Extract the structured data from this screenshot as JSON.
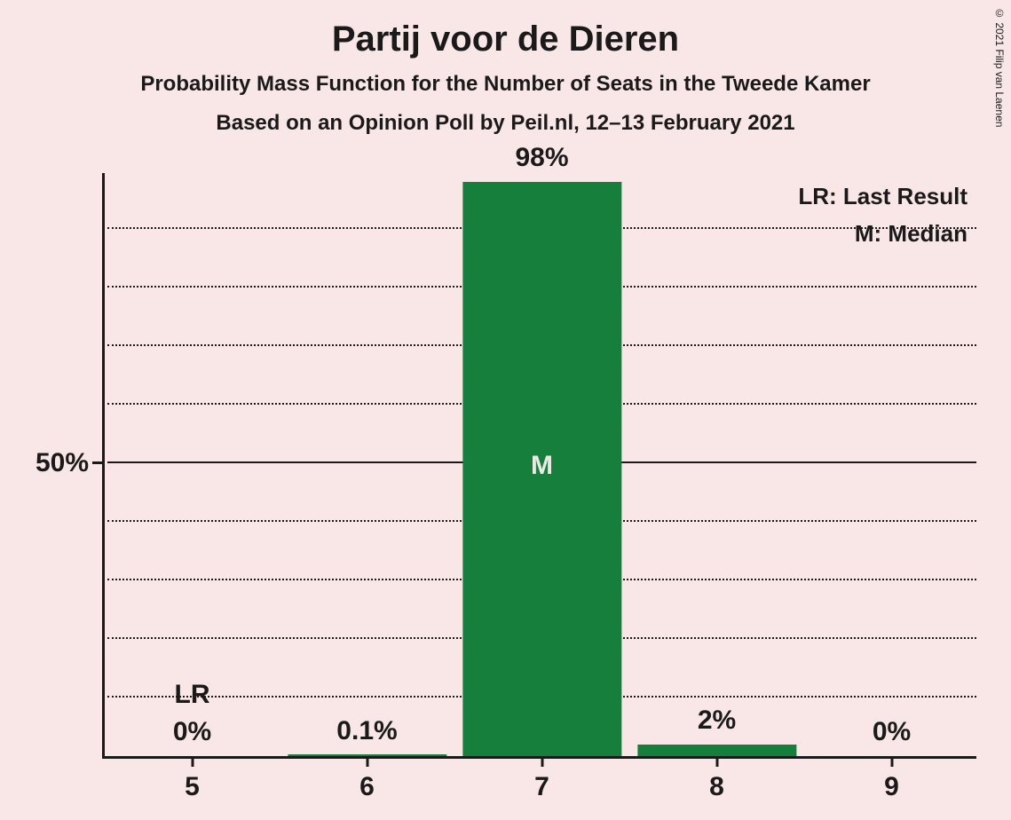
{
  "title": "Partij voor de Dieren",
  "subtitle": "Probability Mass Function for the Number of Seats in the Tweede Kamer",
  "subtitle2": "Based on an Opinion Poll by Peil.nl, 12–13 February 2021",
  "copyright": "© 2021 Filip van Laenen",
  "chart": {
    "type": "bar",
    "background_color": "#f9e7e7",
    "bar_color": "#157f3b",
    "axis_color": "#1a1a1a",
    "grid_color": "#1a1a1a",
    "text_color": "#1a1a1a",
    "inside_text_color": "#f0e6e6",
    "ylim_max_pct": 100,
    "y_major_tick": 50,
    "y_major_label": "50%",
    "y_minor_step": 10,
    "bar_width_ratio": 0.91,
    "categories": [
      "5",
      "6",
      "7",
      "8",
      "9"
    ],
    "values_pct": [
      0,
      0.1,
      98,
      2,
      0
    ],
    "value_labels": [
      "0%",
      "0.1%",
      "98%",
      "2%",
      "0%"
    ],
    "annotations": [
      {
        "index": 0,
        "text": "LR",
        "position": "above"
      },
      {
        "index": 2,
        "text": "M",
        "position": "inside"
      }
    ],
    "legend": {
      "lr": "LR: Last Result",
      "m": "M: Median"
    },
    "title_fontsize": 40,
    "subtitle_fontsize": 24,
    "axis_label_fontsize": 30,
    "legend_fontsize": 26
  }
}
